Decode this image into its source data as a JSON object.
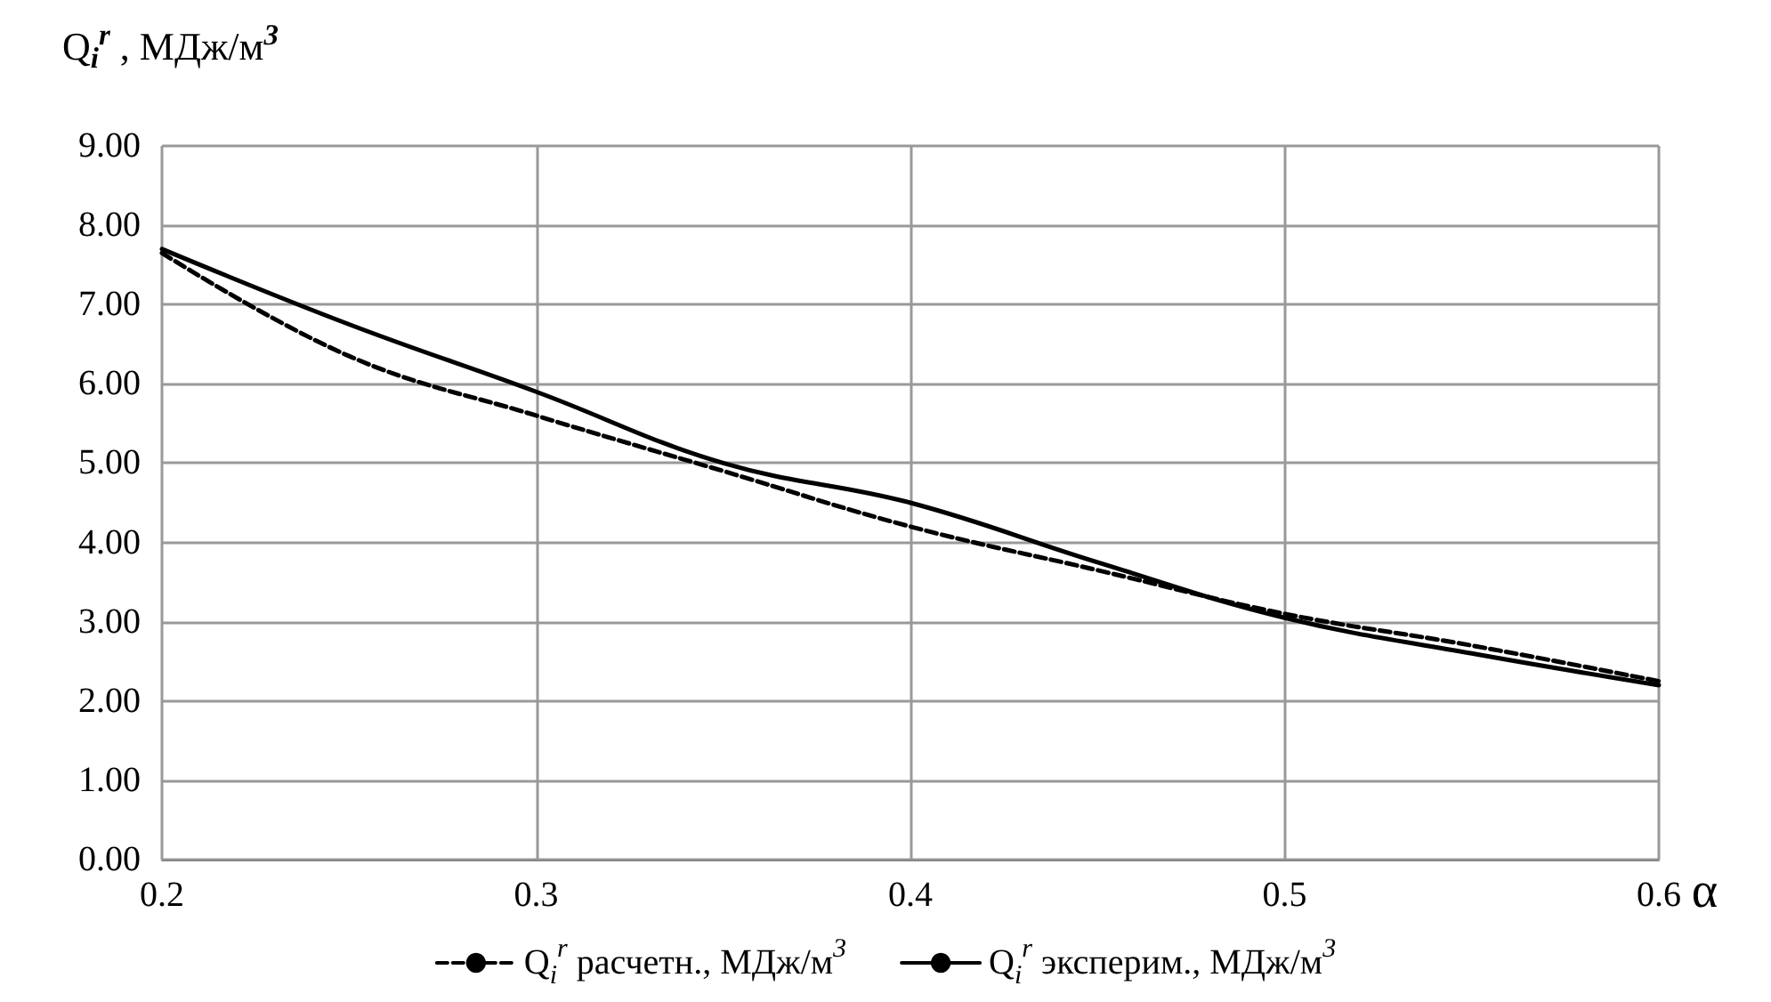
{
  "chart_data": {
    "type": "line",
    "ylabel": "Q$_{i}$$^{r}$ , МДж/м$^{3}$",
    "xlabel": "α",
    "x": [
      0.2,
      0.25,
      0.3,
      0.35,
      0.4,
      0.45,
      0.5,
      0.55,
      0.6
    ],
    "series": [
      {
        "name": "Q$_{i}$$^{r}$ расчетн., МДж/м$^{3}$",
        "color": "#000000",
        "line_style": "dashed",
        "values": [
          7.65,
          6.35,
          5.6,
          4.9,
          4.2,
          3.65,
          3.1,
          2.7,
          2.25
        ]
      },
      {
        "name": "Q$_{i}$$^{r}$ эксперим., МДж/м$^{3}$",
        "color": "#000000",
        "line_style": "solid",
        "values": [
          7.7,
          6.75,
          5.9,
          5.0,
          4.5,
          3.75,
          3.05,
          2.6,
          2.2
        ]
      }
    ],
    "xlim": [
      0.2,
      0.6
    ],
    "xticks": [
      0.2,
      0.3,
      0.4,
      0.5,
      0.6
    ],
    "ylim": [
      0,
      9
    ],
    "yticks": [
      {
        "value": 0,
        "label": "0.00"
      },
      {
        "value": 1,
        "label": "1.00"
      },
      {
        "value": 2,
        "label": "2.00"
      },
      {
        "value": 3,
        "label": "3.00"
      },
      {
        "value": 4,
        "label": "4.00"
      },
      {
        "value": 5,
        "label": "5.00"
      },
      {
        "value": 6,
        "label": "6.00"
      },
      {
        "value": 7,
        "label": "7.00"
      },
      {
        "value": 8,
        "label": "8.00"
      },
      {
        "value": 9,
        "label": "9.00"
      }
    ],
    "grid": true,
    "legend": "bottom",
    "marker": "none"
  }
}
